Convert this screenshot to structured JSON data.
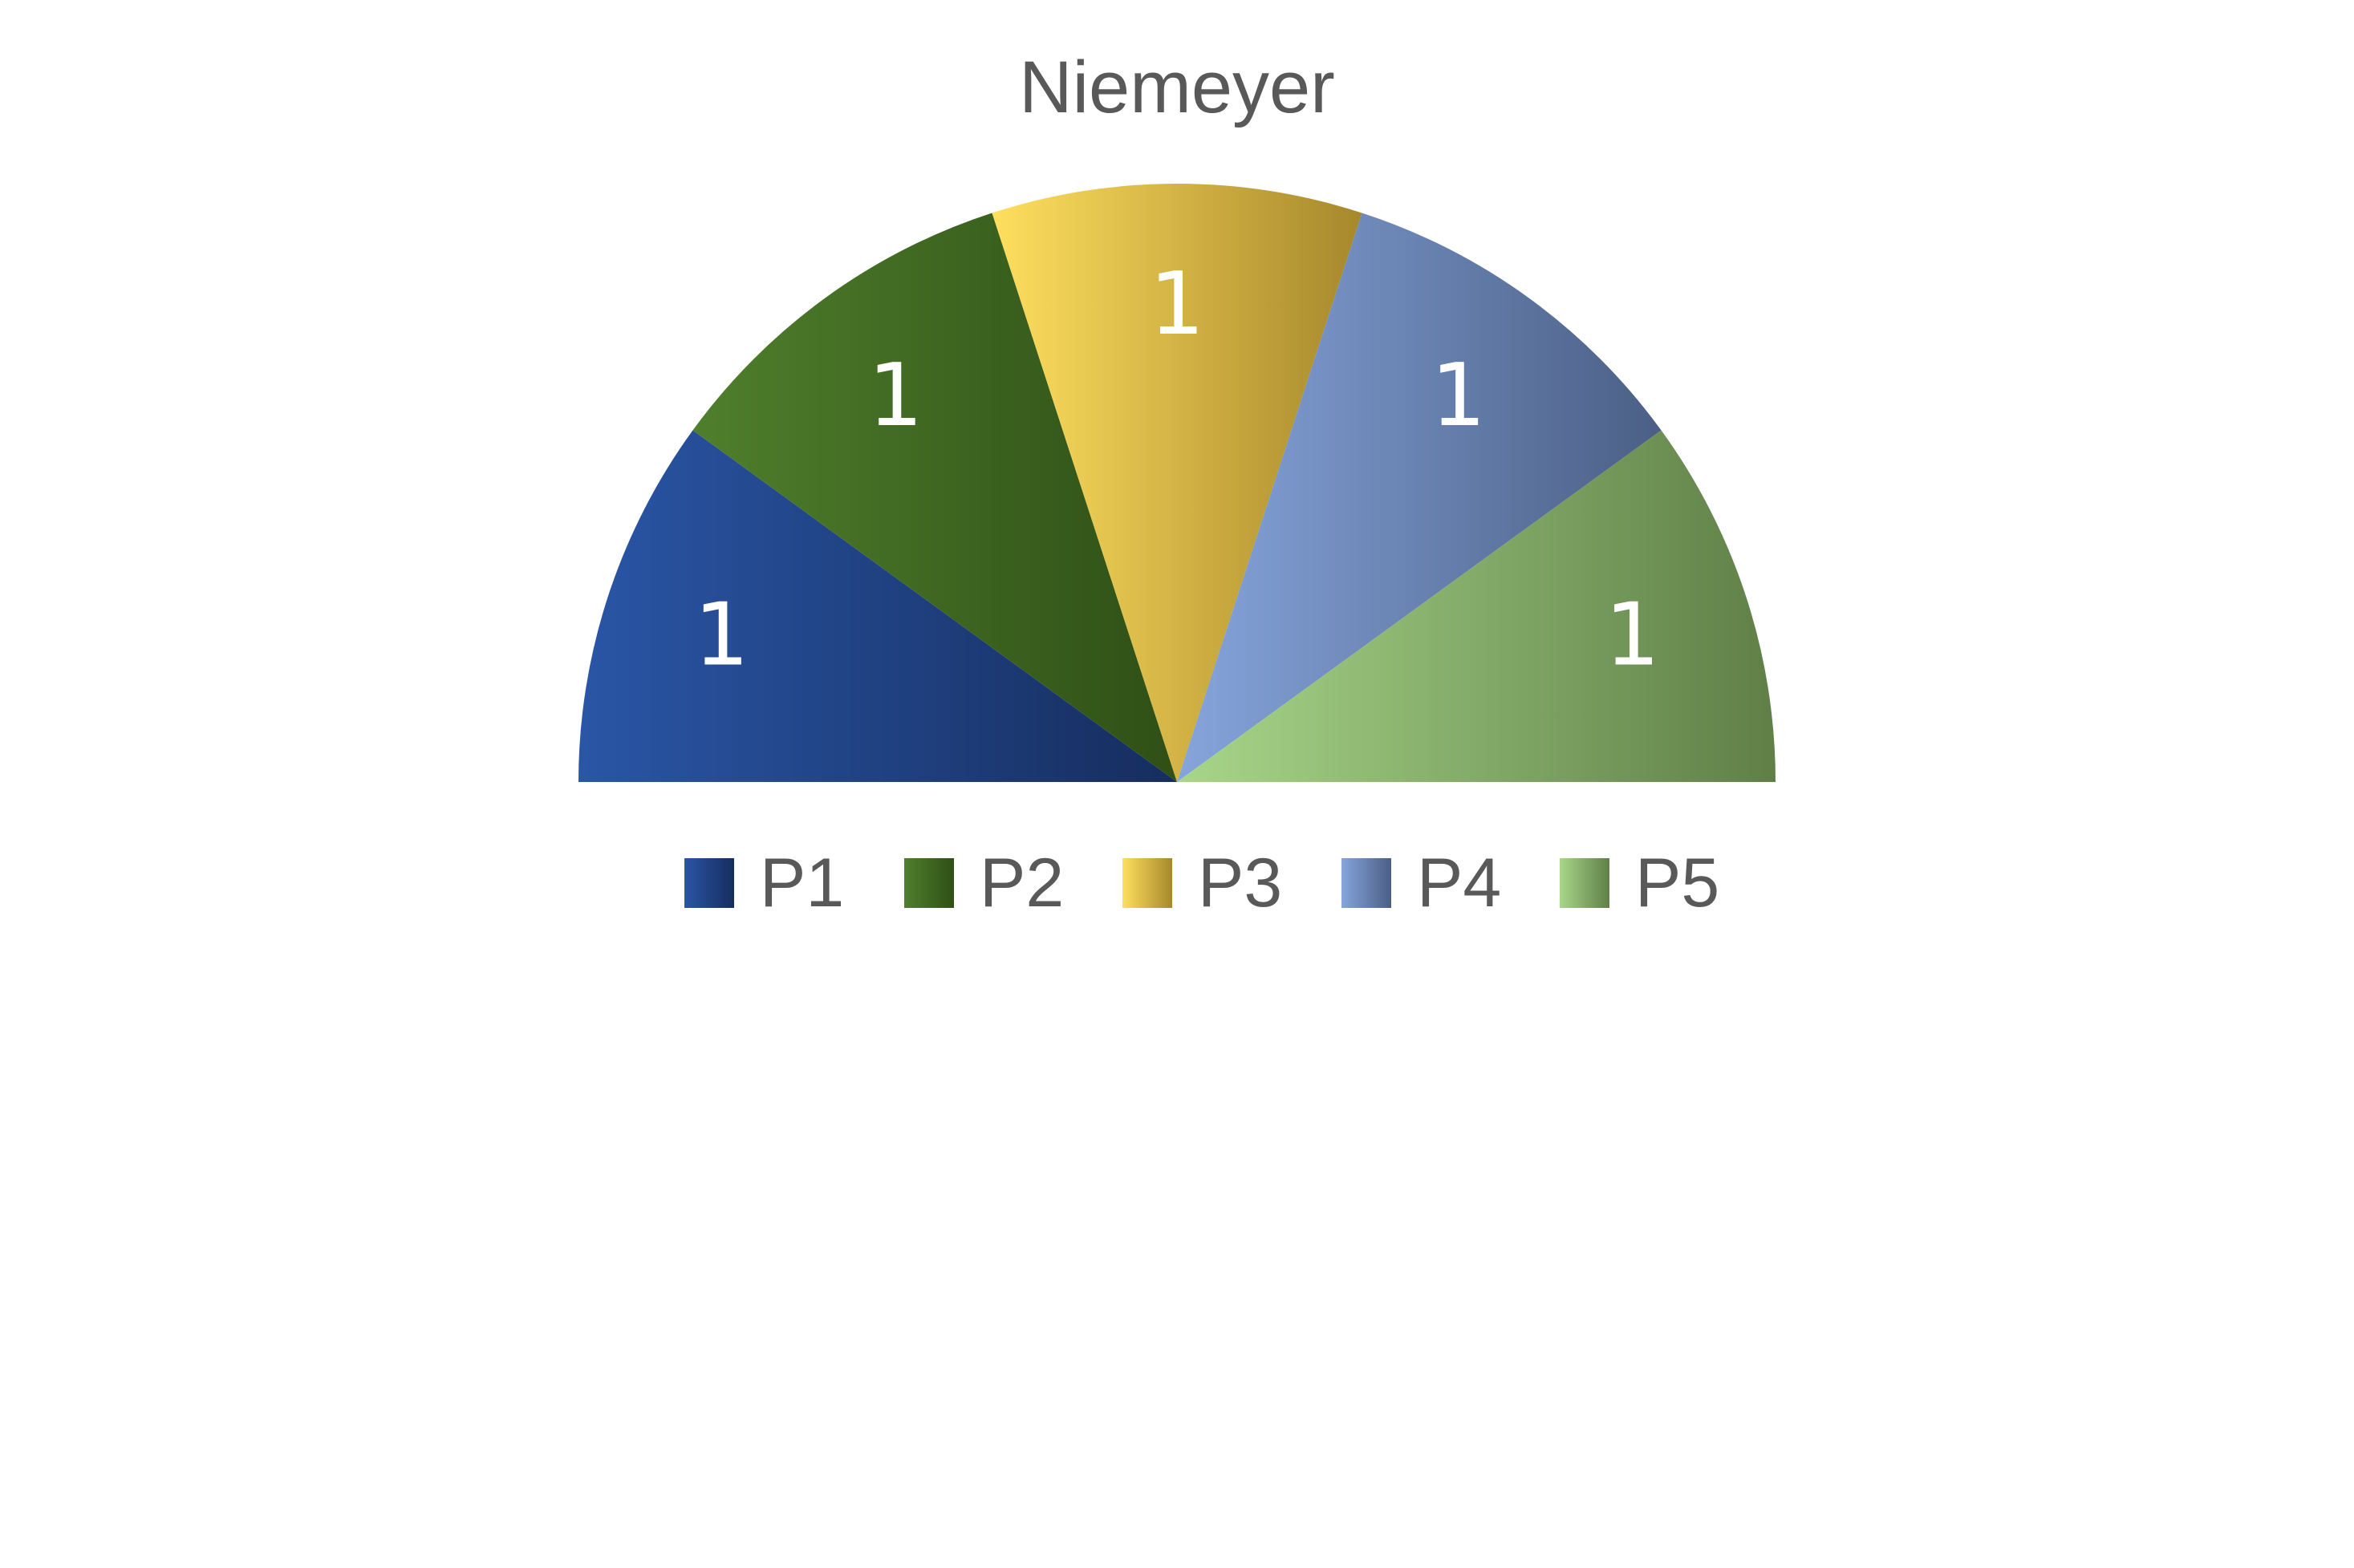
{
  "chart_data": {
    "type": "pie",
    "variant": "half-donut-solid",
    "title": "Niemeyer",
    "categories": [
      "P1",
      "P2",
      "P3",
      "P4",
      "P5"
    ],
    "values": [
      1,
      1,
      1,
      1,
      1
    ],
    "data_labels": [
      "1",
      "1",
      "1",
      "1",
      "1"
    ],
    "legend": {
      "position": "bottom",
      "entries": [
        "P1",
        "P2",
        "P3",
        "P4",
        "P5"
      ]
    },
    "colors": [
      [
        "#2a56a6",
        "#162d5e"
      ],
      [
        "#4f7f2c",
        "#2f4f16"
      ],
      [
        "#ffdf5e",
        "#a6882c"
      ],
      [
        "#86a5dc",
        "#4b5f85"
      ],
      [
        "#a8d68a",
        "#5f7f47"
      ]
    ]
  }
}
